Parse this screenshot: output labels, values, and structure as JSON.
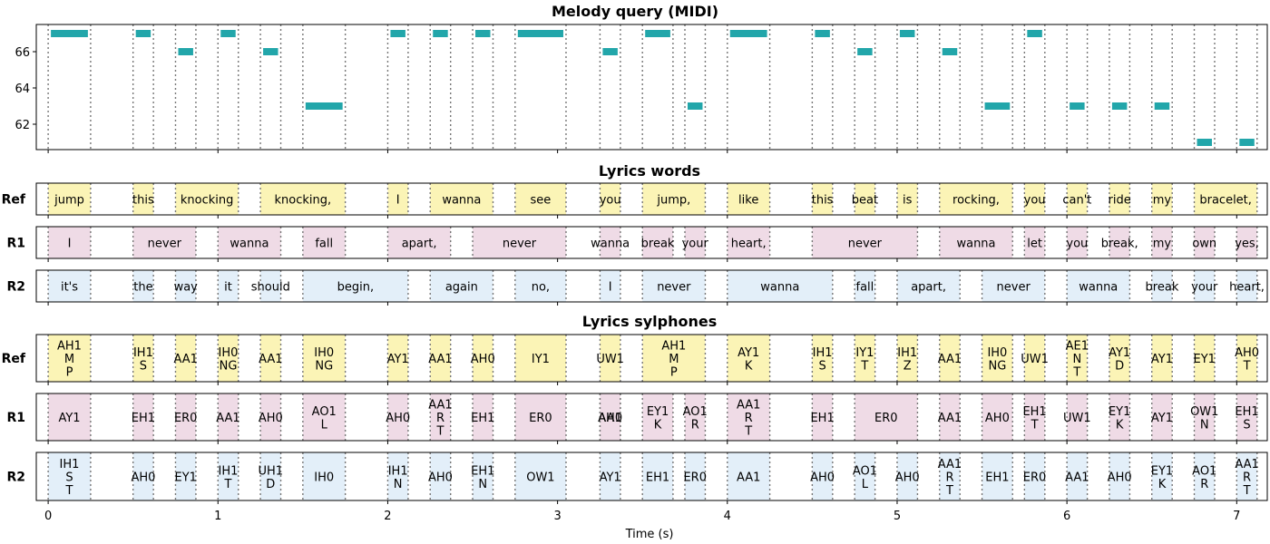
{
  "colors": {
    "note": "#22a6aa",
    "ref": "#fbf4b6",
    "r1": "#efdbe6",
    "r2": "#e3eff9",
    "grid": "#777777"
  },
  "x_axis": {
    "label": "Time (s)",
    "ticks": [
      0,
      1,
      2,
      3,
      4,
      5,
      6,
      7
    ],
    "xlim": [
      -0.07,
      7.18
    ]
  },
  "chart_data": [
    {
      "type": "piano-roll",
      "title": "Melody query (MIDI)",
      "ylim": [
        60.6,
        67.5
      ],
      "yticks": [
        62,
        64,
        66
      ],
      "notes": [
        {
          "start": 0.0,
          "end": 0.25,
          "pitch": 67
        },
        {
          "start": 0.5,
          "end": 0.62,
          "pitch": 67
        },
        {
          "start": 0.75,
          "end": 0.87,
          "pitch": 66
        },
        {
          "start": 1.0,
          "end": 1.12,
          "pitch": 67
        },
        {
          "start": 1.25,
          "end": 1.37,
          "pitch": 66
        },
        {
          "start": 1.5,
          "end": 1.75,
          "pitch": 63
        },
        {
          "start": 2.0,
          "end": 2.12,
          "pitch": 67
        },
        {
          "start": 2.25,
          "end": 2.37,
          "pitch": 67
        },
        {
          "start": 2.5,
          "end": 2.62,
          "pitch": 67
        },
        {
          "start": 2.75,
          "end": 3.05,
          "pitch": 67
        },
        {
          "start": 3.25,
          "end": 3.37,
          "pitch": 66
        },
        {
          "start": 3.5,
          "end": 3.68,
          "pitch": 67
        },
        {
          "start": 3.75,
          "end": 3.87,
          "pitch": 63
        },
        {
          "start": 4.0,
          "end": 4.25,
          "pitch": 67
        },
        {
          "start": 4.5,
          "end": 4.62,
          "pitch": 67
        },
        {
          "start": 4.75,
          "end": 4.87,
          "pitch": 66
        },
        {
          "start": 5.0,
          "end": 5.12,
          "pitch": 67
        },
        {
          "start": 5.25,
          "end": 5.37,
          "pitch": 66
        },
        {
          "start": 5.5,
          "end": 5.68,
          "pitch": 63
        },
        {
          "start": 5.75,
          "end": 5.87,
          "pitch": 67
        },
        {
          "start": 6.0,
          "end": 6.12,
          "pitch": 63
        },
        {
          "start": 6.25,
          "end": 6.37,
          "pitch": 63
        },
        {
          "start": 6.5,
          "end": 6.62,
          "pitch": 63
        },
        {
          "start": 6.75,
          "end": 6.87,
          "pitch": 61
        },
        {
          "start": 7.0,
          "end": 7.12,
          "pitch": 61
        }
      ]
    },
    {
      "type": "timeline",
      "title": "Lyrics words",
      "rows": [
        {
          "label": "Ref",
          "color": "ref",
          "segments": [
            {
              "start": 0.0,
              "end": 0.25,
              "text": "jump"
            },
            {
              "start": 0.5,
              "end": 0.62,
              "text": "this"
            },
            {
              "start": 0.75,
              "end": 1.12,
              "text": "knocking"
            },
            {
              "start": 1.25,
              "end": 1.75,
              "text": "knocking,"
            },
            {
              "start": 2.0,
              "end": 2.12,
              "text": "I"
            },
            {
              "start": 2.25,
              "end": 2.62,
              "text": "wanna"
            },
            {
              "start": 2.75,
              "end": 3.05,
              "text": "see"
            },
            {
              "start": 3.25,
              "end": 3.37,
              "text": "you"
            },
            {
              "start": 3.5,
              "end": 3.87,
              "text": "jump,"
            },
            {
              "start": 4.0,
              "end": 4.25,
              "text": "like"
            },
            {
              "start": 4.5,
              "end": 4.62,
              "text": "this"
            },
            {
              "start": 4.75,
              "end": 4.87,
              "text": "beat"
            },
            {
              "start": 5.0,
              "end": 5.12,
              "text": "is"
            },
            {
              "start": 5.25,
              "end": 5.68,
              "text": "rocking,"
            },
            {
              "start": 5.75,
              "end": 5.87,
              "text": "you"
            },
            {
              "start": 6.0,
              "end": 6.12,
              "text": "can't"
            },
            {
              "start": 6.25,
              "end": 6.37,
              "text": "ride"
            },
            {
              "start": 6.5,
              "end": 6.62,
              "text": "my"
            },
            {
              "start": 6.75,
              "end": 7.12,
              "text": "bracelet,"
            }
          ]
        },
        {
          "label": "R1",
          "color": "r1",
          "segments": [
            {
              "start": 0.0,
              "end": 0.25,
              "text": "I"
            },
            {
              "start": 0.5,
              "end": 0.87,
              "text": "never"
            },
            {
              "start": 1.0,
              "end": 1.37,
              "text": "wanna"
            },
            {
              "start": 1.5,
              "end": 1.75,
              "text": "fall"
            },
            {
              "start": 2.0,
              "end": 2.37,
              "text": "apart,"
            },
            {
              "start": 2.5,
              "end": 3.05,
              "text": "never"
            },
            {
              "start": 3.25,
              "end": 3.37,
              "text": "wanna"
            },
            {
              "start": 3.5,
              "end": 3.68,
              "text": "break"
            },
            {
              "start": 3.75,
              "end": 3.87,
              "text": "your"
            },
            {
              "start": 4.0,
              "end": 4.25,
              "text": "heart,"
            },
            {
              "start": 4.5,
              "end": 5.12,
              "text": "never"
            },
            {
              "start": 5.25,
              "end": 5.68,
              "text": "wanna"
            },
            {
              "start": 5.75,
              "end": 5.87,
              "text": "let"
            },
            {
              "start": 6.0,
              "end": 6.12,
              "text": "you"
            },
            {
              "start": 6.25,
              "end": 6.37,
              "text": "break,"
            },
            {
              "start": 6.5,
              "end": 6.62,
              "text": "my"
            },
            {
              "start": 6.75,
              "end": 6.87,
              "text": "own"
            },
            {
              "start": 7.0,
              "end": 7.12,
              "text": "yes,"
            }
          ]
        },
        {
          "label": "R2",
          "color": "r2",
          "segments": [
            {
              "start": 0.0,
              "end": 0.25,
              "text": "it's"
            },
            {
              "start": 0.5,
              "end": 0.62,
              "text": "the"
            },
            {
              "start": 0.75,
              "end": 0.87,
              "text": "way"
            },
            {
              "start": 1.0,
              "end": 1.12,
              "text": "it"
            },
            {
              "start": 1.25,
              "end": 1.37,
              "text": "should"
            },
            {
              "start": 1.5,
              "end": 2.12,
              "text": "begin,"
            },
            {
              "start": 2.25,
              "end": 2.62,
              "text": "again"
            },
            {
              "start": 2.75,
              "end": 3.05,
              "text": "no,"
            },
            {
              "start": 3.25,
              "end": 3.37,
              "text": "I"
            },
            {
              "start": 3.5,
              "end": 3.87,
              "text": "never"
            },
            {
              "start": 4.0,
              "end": 4.62,
              "text": "wanna"
            },
            {
              "start": 4.75,
              "end": 4.87,
              "text": "fall"
            },
            {
              "start": 5.0,
              "end": 5.37,
              "text": "apart,"
            },
            {
              "start": 5.5,
              "end": 5.87,
              "text": "never"
            },
            {
              "start": 6.0,
              "end": 6.37,
              "text": "wanna"
            },
            {
              "start": 6.5,
              "end": 6.62,
              "text": "break"
            },
            {
              "start": 6.75,
              "end": 6.87,
              "text": "your"
            },
            {
              "start": 7.0,
              "end": 7.12,
              "text": "heart,"
            }
          ]
        }
      ]
    },
    {
      "type": "timeline",
      "title": "Lyrics sylphones",
      "rows": [
        {
          "label": "Ref",
          "color": "ref",
          "segments": [
            {
              "start": 0.0,
              "end": 0.25,
              "text": "AH1\nM\nP"
            },
            {
              "start": 0.5,
              "end": 0.62,
              "text": "IH1\nS"
            },
            {
              "start": 0.75,
              "end": 0.87,
              "text": "AA1"
            },
            {
              "start": 1.0,
              "end": 1.12,
              "text": "IH0\nNG"
            },
            {
              "start": 1.25,
              "end": 1.37,
              "text": "AA1"
            },
            {
              "start": 1.5,
              "end": 1.75,
              "text": "IH0\nNG"
            },
            {
              "start": 2.0,
              "end": 2.12,
              "text": "AY1"
            },
            {
              "start": 2.25,
              "end": 2.37,
              "text": "AA1"
            },
            {
              "start": 2.5,
              "end": 2.62,
              "text": "AH0"
            },
            {
              "start": 2.75,
              "end": 3.05,
              "text": "IY1"
            },
            {
              "start": 3.25,
              "end": 3.37,
              "text": "UW1"
            },
            {
              "start": 3.5,
              "end": 3.87,
              "text": "AH1\nM\nP"
            },
            {
              "start": 4.0,
              "end": 4.25,
              "text": "AY1\nK"
            },
            {
              "start": 4.5,
              "end": 4.62,
              "text": "IH1\nS"
            },
            {
              "start": 4.75,
              "end": 4.87,
              "text": "IY1\nT"
            },
            {
              "start": 5.0,
              "end": 5.12,
              "text": "IH1\nZ"
            },
            {
              "start": 5.25,
              "end": 5.37,
              "text": "AA1"
            },
            {
              "start": 5.5,
              "end": 5.68,
              "text": "IH0\nNG"
            },
            {
              "start": 5.75,
              "end": 5.87,
              "text": "UW1"
            },
            {
              "start": 6.0,
              "end": 6.12,
              "text": "AE1\nN\nT"
            },
            {
              "start": 6.25,
              "end": 6.37,
              "text": "AY1\nD"
            },
            {
              "start": 6.5,
              "end": 6.62,
              "text": "AY1"
            },
            {
              "start": 6.75,
              "end": 6.87,
              "text": "EY1"
            },
            {
              "start": 7.0,
              "end": 7.12,
              "text": "AH0\nT"
            }
          ]
        },
        {
          "label": "R1",
          "color": "r1",
          "segments": [
            {
              "start": 0.0,
              "end": 0.25,
              "text": "AY1"
            },
            {
              "start": 0.5,
              "end": 0.62,
              "text": "EH1"
            },
            {
              "start": 0.75,
              "end": 0.87,
              "text": "ER0"
            },
            {
              "start": 1.0,
              "end": 1.12,
              "text": "AA1"
            },
            {
              "start": 1.25,
              "end": 1.37,
              "text": "AH0"
            },
            {
              "start": 1.5,
              "end": 1.75,
              "text": "AO1\nL"
            },
            {
              "start": 2.0,
              "end": 2.12,
              "text": "AH0"
            },
            {
              "start": 2.25,
              "end": 2.37,
              "text": "AA1\nR\nT"
            },
            {
              "start": 2.5,
              "end": 2.62,
              "text": "EH1"
            },
            {
              "start": 2.75,
              "end": 3.05,
              "text": "ER0"
            },
            {
              "start": 3.25,
              "end": 3.37,
              "text": "AA1"
            },
            {
              "start": 3.25,
              "end": 3.37,
              "text": "AH0"
            },
            {
              "start": 3.5,
              "end": 3.68,
              "text": "EY1\nK"
            },
            {
              "start": 3.75,
              "end": 3.87,
              "text": "AO1\nR"
            },
            {
              "start": 4.0,
              "end": 4.25,
              "text": "AA1\nR\nT"
            },
            {
              "start": 4.5,
              "end": 4.62,
              "text": "EH1"
            },
            {
              "start": 4.75,
              "end": 5.12,
              "text": "ER0"
            },
            {
              "start": 5.25,
              "end": 5.37,
              "text": "AA1"
            },
            {
              "start": 5.5,
              "end": 5.68,
              "text": "AH0"
            },
            {
              "start": 5.75,
              "end": 5.87,
              "text": "EH1\nT"
            },
            {
              "start": 6.0,
              "end": 6.12,
              "text": "UW1"
            },
            {
              "start": 6.25,
              "end": 6.37,
              "text": "EY1\nK"
            },
            {
              "start": 6.5,
              "end": 6.62,
              "text": "AY1"
            },
            {
              "start": 6.75,
              "end": 6.87,
              "text": "OW1\nN"
            },
            {
              "start": 7.0,
              "end": 7.12,
              "text": "EH1\nS"
            }
          ]
        },
        {
          "label": "R2",
          "color": "r2",
          "segments": [
            {
              "start": 0.0,
              "end": 0.25,
              "text": "IH1\nS\nT"
            },
            {
              "start": 0.5,
              "end": 0.62,
              "text": "AH0"
            },
            {
              "start": 0.75,
              "end": 0.87,
              "text": "EY1"
            },
            {
              "start": 1.0,
              "end": 1.12,
              "text": "IH1\nT"
            },
            {
              "start": 1.25,
              "end": 1.37,
              "text": "UH1\nD"
            },
            {
              "start": 1.5,
              "end": 1.75,
              "text": "IH0"
            },
            {
              "start": 2.0,
              "end": 2.12,
              "text": "IH1\nN"
            },
            {
              "start": 2.25,
              "end": 2.37,
              "text": "AH0"
            },
            {
              "start": 2.5,
              "end": 2.62,
              "text": "EH1\nN"
            },
            {
              "start": 2.75,
              "end": 3.05,
              "text": "OW1"
            },
            {
              "start": 3.25,
              "end": 3.37,
              "text": "AY1"
            },
            {
              "start": 3.5,
              "end": 3.68,
              "text": "EH1"
            },
            {
              "start": 3.75,
              "end": 3.87,
              "text": "ER0"
            },
            {
              "start": 4.0,
              "end": 4.25,
              "text": "AA1"
            },
            {
              "start": 4.5,
              "end": 4.62,
              "text": "AH0"
            },
            {
              "start": 4.75,
              "end": 4.87,
              "text": "AO1\nL"
            },
            {
              "start": 5.0,
              "end": 5.12,
              "text": "AH0"
            },
            {
              "start": 5.25,
              "end": 5.37,
              "text": "AA1\nR\nT"
            },
            {
              "start": 5.5,
              "end": 5.68,
              "text": "EH1"
            },
            {
              "start": 5.75,
              "end": 5.87,
              "text": "ER0"
            },
            {
              "start": 6.0,
              "end": 6.12,
              "text": "AA1"
            },
            {
              "start": 6.25,
              "end": 6.37,
              "text": "AH0"
            },
            {
              "start": 6.5,
              "end": 6.62,
              "text": "EY1\nK"
            },
            {
              "start": 6.75,
              "end": 6.87,
              "text": "AO1\nR"
            },
            {
              "start": 7.0,
              "end": 7.12,
              "text": "AA1\nR\nT"
            }
          ]
        }
      ]
    }
  ]
}
